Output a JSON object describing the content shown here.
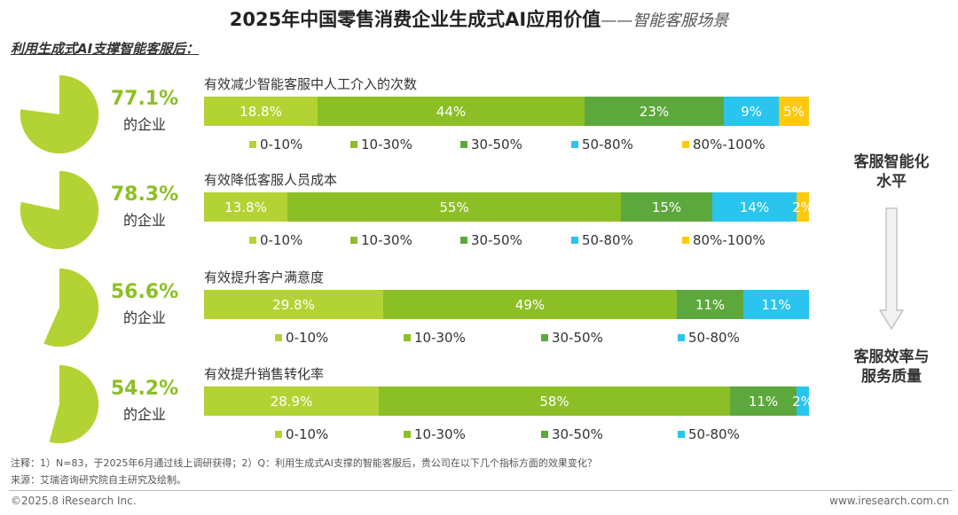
{
  "title": {
    "main": "2025年中国零售消费企业生成式AI应用价值",
    "sub": "——智能客服场景"
  },
  "subhead": "利用生成式AI支撑智能客服后：",
  "colors": {
    "c1": "#B3D334",
    "c2": "#8CBF26",
    "c3": "#5DA83D",
    "c4": "#29C5EE",
    "c5": "#FFC90E"
  },
  "side": {
    "top": [
      "客服智能化",
      "水平"
    ],
    "bottom": [
      "客服效率与",
      "服务质量"
    ]
  },
  "notes": {
    "note": "注释：1）N=83，于2025年6月通过线上调研获得；2）Q：利用生成式AI支撑的智能客服后，贵公司在以下几个指标方面的效果变化？",
    "source": "来源：艾瑞咨询研究院自主研究及绘制。"
  },
  "footer": {
    "left": "©2025.8 iResearch Inc.",
    "right": "www.iresearch.com.cn"
  },
  "chart_data": {
    "type": "bar",
    "stacked": "horizontal-100%",
    "rows": [
      {
        "title": "有效减少智能客服中人工介入的次数",
        "pct": "77.1%",
        "pct_sub": "的企业",
        "share": 0.771,
        "categories": [
          "0-10%",
          "10-30%",
          "30-50%",
          "50-80%",
          "80%-100%"
        ],
        "values": [
          18.8,
          44,
          23,
          9,
          5
        ],
        "labels": [
          "18.8%",
          "44%",
          "23%",
          "9%",
          "5%"
        ]
      },
      {
        "title": "有效降低客服人员成本",
        "pct": "78.3%",
        "pct_sub": "的企业",
        "share": 0.783,
        "categories": [
          "0-10%",
          "10-30%",
          "30-50%",
          "50-80%",
          "80%-100%"
        ],
        "values": [
          13.8,
          55,
          15,
          14,
          2
        ],
        "labels": [
          "13.8%",
          "55%",
          "15%",
          "14%",
          "2%"
        ]
      },
      {
        "title": "有效提升客户满意度",
        "pct": "56.6%",
        "pct_sub": "的企业",
        "share": 0.566,
        "categories": [
          "0-10%",
          "10-30%",
          "30-50%",
          "50-80%"
        ],
        "values": [
          29.8,
          49,
          11,
          11
        ],
        "labels": [
          "29.8%",
          "49%",
          "11%",
          "11%"
        ]
      },
      {
        "title": "有效提升销售转化率",
        "pct": "54.2%",
        "pct_sub": "的企业",
        "share": 0.542,
        "categories": [
          "0-10%",
          "10-30%",
          "30-50%",
          "50-80%"
        ],
        "values": [
          28.9,
          58,
          11,
          2
        ],
        "labels": [
          "28.9%",
          "58%",
          "11%",
          "2%"
        ]
      }
    ]
  }
}
